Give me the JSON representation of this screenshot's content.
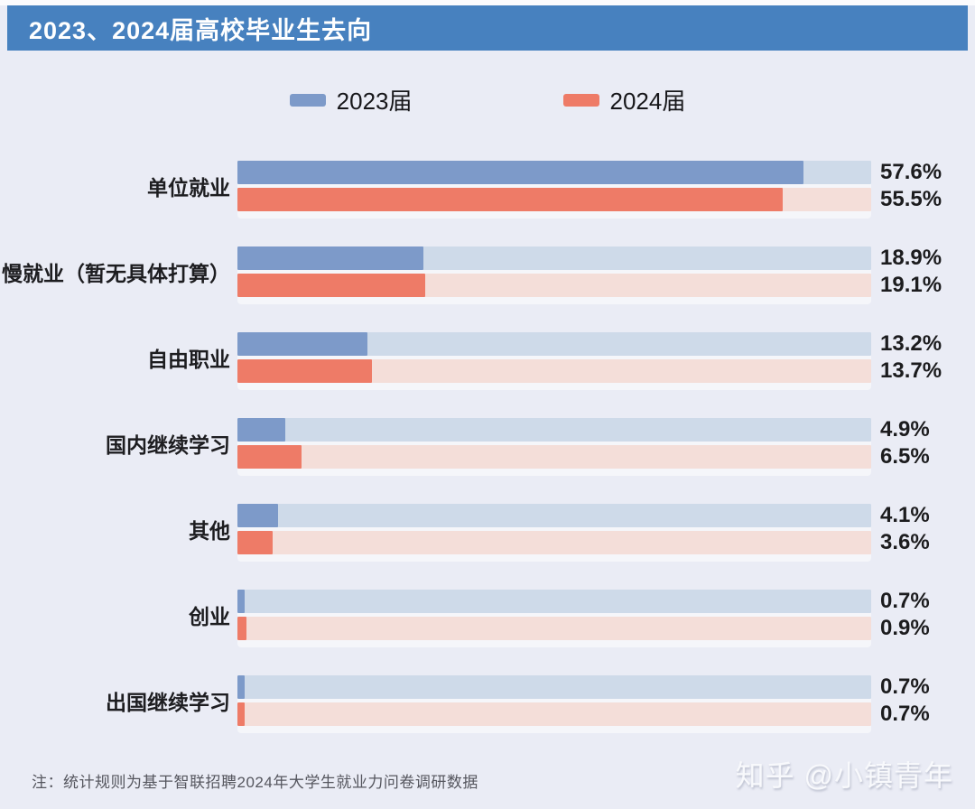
{
  "header": {
    "title": "2023、2024届高校毕业生去向"
  },
  "legend": {
    "items": [
      {
        "label": "2023届",
        "color": "#7d9ac9"
      },
      {
        "label": "2024届",
        "color": "#ee7b67"
      }
    ]
  },
  "chart_data": {
    "type": "bar",
    "orientation": "horizontal",
    "title": "2023、2024届高校毕业生去向",
    "categories": [
      "单位就业",
      "慢就业（暂无具体打算）",
      "自由职业",
      "国内继续学习",
      "其他",
      "创业",
      "出国继续学习"
    ],
    "series": [
      {
        "name": "2023届",
        "color": "#7d9ac9",
        "track_color": "#cedae9",
        "values": [
          57.6,
          18.9,
          13.2,
          4.9,
          4.1,
          0.7,
          0.7
        ]
      },
      {
        "name": "2024届",
        "color": "#ee7b67",
        "track_color": "#f4ded9",
        "values": [
          55.5,
          19.1,
          13.7,
          6.5,
          3.6,
          0.9,
          0.7
        ]
      }
    ],
    "unit": "%",
    "x_max": 64.5,
    "grid": false,
    "legend_position": "top",
    "value_label_position": "right"
  },
  "footnote": "注：统计规则为基于智联招聘2024年大学生就业力问卷调研数据",
  "watermark": "知乎 @小镇青年",
  "colors": {
    "page_bg": "#eaecf5",
    "header_bg": "#4781bf",
    "header_text": "#ffffff",
    "series_2023": "#7d9ac9",
    "series_2024": "#ee7b67",
    "track_2023": "#cedae9",
    "track_2024": "#f4ded9",
    "text": "#1d1d20",
    "footnote_text": "#55565e"
  }
}
